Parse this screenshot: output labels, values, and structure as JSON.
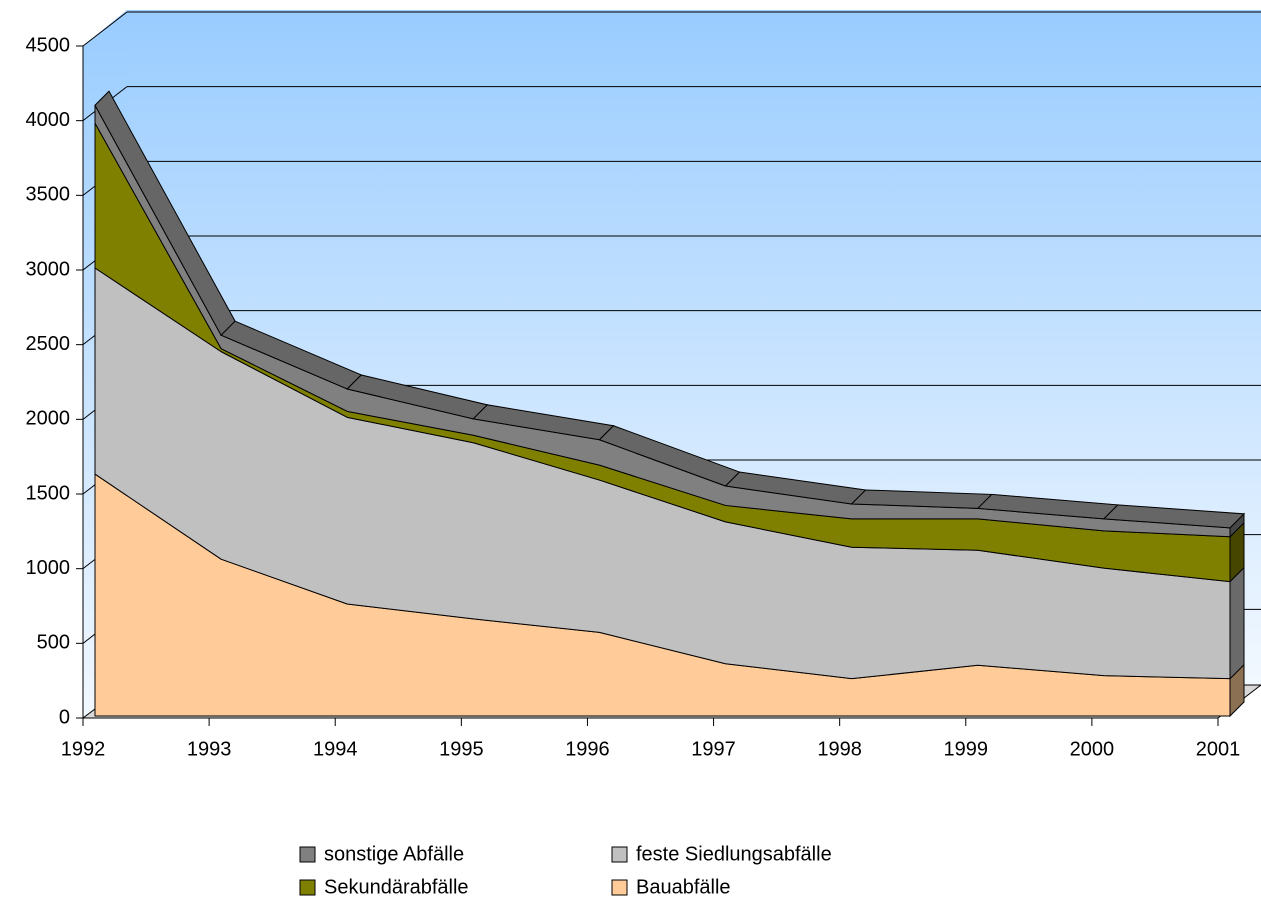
{
  "chart_data": {
    "type": "area3d",
    "stacked": true,
    "x": [
      "1992",
      "1993",
      "1994",
      "1995",
      "1996",
      "1997",
      "1998",
      "1999",
      "2000",
      "2001"
    ],
    "series": [
      {
        "name": "Bauabfälle",
        "color": "#ffcc99",
        "values": [
          1620,
          1050,
          750,
          650,
          560,
          350,
          250,
          340,
          270,
          250
        ]
      },
      {
        "name": "feste Siedlungsabfälle",
        "color": "#c0c0c0",
        "values": [
          1380,
          1390,
          1250,
          1180,
          1020,
          950,
          880,
          770,
          720,
          650
        ]
      },
      {
        "name": "Sekundärabfälle",
        "color": "#808000",
        "values": [
          970,
          20,
          40,
          50,
          100,
          110,
          190,
          210,
          250,
          300
        ]
      },
      {
        "name": "sonstige Abfälle",
        "color": "#808080",
        "values": [
          120,
          90,
          150,
          110,
          170,
          130,
          100,
          70,
          80,
          60
        ]
      }
    ],
    "ylim": [
      0,
      4500
    ],
    "yticks": [
      0,
      500,
      1000,
      1500,
      2000,
      2500,
      3000,
      3500,
      4000,
      4500
    ],
    "grid": true
  }
}
